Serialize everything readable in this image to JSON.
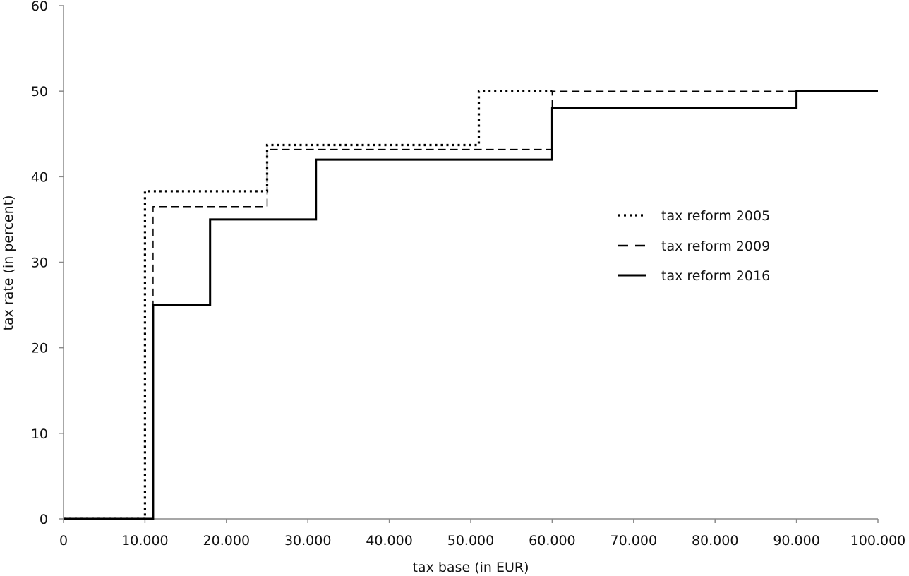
{
  "chart_data": {
    "type": "line",
    "step": true,
    "title": "",
    "xlabel": "tax base (in EUR)",
    "ylabel": "tax rate (in percent)",
    "xlim": [
      0,
      100000
    ],
    "ylim": [
      0,
      60
    ],
    "x_ticks": [
      0,
      10000,
      20000,
      30000,
      40000,
      50000,
      60000,
      70000,
      80000,
      90000,
      100000
    ],
    "x_tick_labels": [
      "0",
      "10.000",
      "20.000",
      "30.000",
      "40.000",
      "50.000",
      "60.000",
      "70.000",
      "80.000",
      "90.000",
      "100.000"
    ],
    "y_ticks": [
      0,
      10,
      20,
      30,
      40,
      50,
      60
    ],
    "y_tick_labels": [
      "0",
      "10",
      "20",
      "30",
      "40",
      "50",
      "60"
    ],
    "grid": false,
    "legend_position": "right",
    "series": [
      {
        "name": "tax reform 2005",
        "style": "dotted",
        "color": "#000000",
        "points": [
          [
            0,
            0
          ],
          [
            10000,
            0
          ],
          [
            10000,
            38.3
          ],
          [
            25000,
            38.3
          ],
          [
            25000,
            43.7
          ],
          [
            51000,
            43.7
          ],
          [
            51000,
            50
          ],
          [
            60000,
            50
          ]
        ]
      },
      {
        "name": "tax reform 2009",
        "style": "dashed",
        "color": "#000000",
        "points": [
          [
            0,
            0
          ],
          [
            11000,
            0
          ],
          [
            11000,
            36.5
          ],
          [
            25000,
            36.5
          ],
          [
            25000,
            43.2
          ],
          [
            60000,
            43.2
          ],
          [
            60000,
            50
          ],
          [
            100000,
            50
          ]
        ]
      },
      {
        "name": "tax reform 2016",
        "style": "solid",
        "color": "#000000",
        "points": [
          [
            0,
            0
          ],
          [
            11000,
            0
          ],
          [
            11000,
            25
          ],
          [
            18000,
            25
          ],
          [
            18000,
            35
          ],
          [
            31000,
            35
          ],
          [
            31000,
            42
          ],
          [
            60000,
            42
          ],
          [
            60000,
            48
          ],
          [
            90000,
            48
          ],
          [
            90000,
            50
          ],
          [
            100000,
            50
          ]
        ]
      }
    ]
  }
}
